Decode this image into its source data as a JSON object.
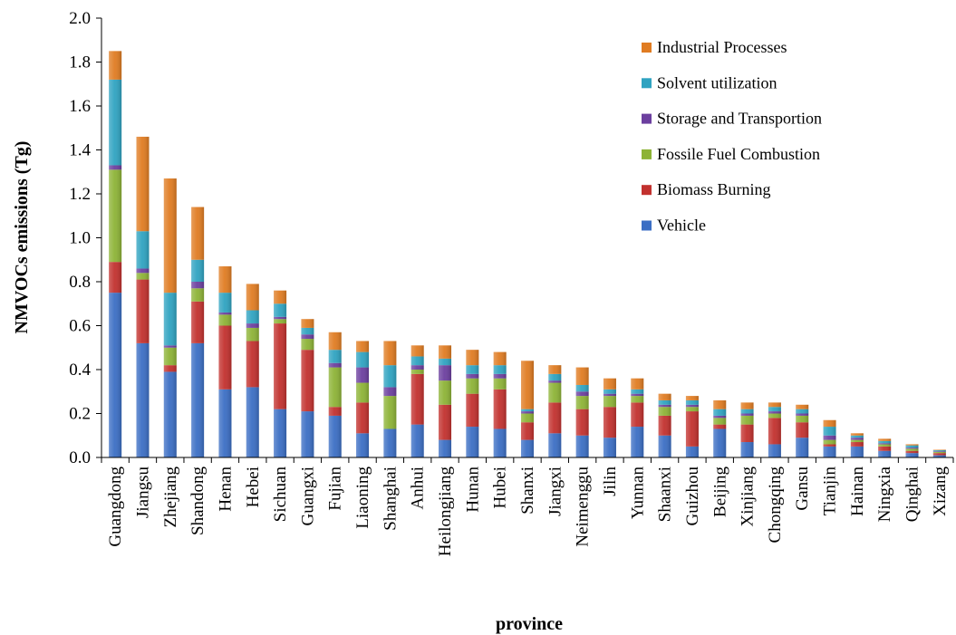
{
  "chart_data": {
    "type": "bar",
    "stacked": true,
    "xlabel": "province",
    "ylabel": "NMVOCs emissions (Tg)",
    "ylim": [
      0,
      2.0
    ],
    "yticks": [
      "0.0",
      "0.2",
      "0.4",
      "0.6",
      "0.8",
      "1.0",
      "1.2",
      "1.4",
      "1.6",
      "1.8",
      "2.0"
    ],
    "grid": false,
    "legend_position": "top-right",
    "categories": [
      "Guangdong",
      "Jiangsu",
      "Zhejiang",
      "Shandong",
      "Henan",
      "Hebei",
      "Sichuan",
      "Guangxi",
      "Fujian",
      "Liaoning",
      "Shanghai",
      "Anhui",
      "Heilongjiang",
      "Hunan",
      "Hubei",
      "Shanxi",
      "Jiangxi",
      "Neimenggu",
      "Jilin",
      "Yunnan",
      "Shaanxi",
      "Guizhou",
      "Beijing",
      "Xinjiang",
      "Chongqing",
      "Gansu",
      "Tianjin",
      "Hainan",
      "Ningxia",
      "Qinghai",
      "Xizang"
    ],
    "series": [
      {
        "name": "Vehicle",
        "color": "#3B6EC4",
        "values": [
          0.75,
          0.52,
          0.39,
          0.52,
          0.31,
          0.32,
          0.22,
          0.21,
          0.19,
          0.11,
          0.13,
          0.15,
          0.08,
          0.14,
          0.13,
          0.08,
          0.11,
          0.1,
          0.09,
          0.14,
          0.1,
          0.05,
          0.13,
          0.07,
          0.06,
          0.09,
          0.05,
          0.05,
          0.03,
          0.02,
          0.01
        ]
      },
      {
        "name": "Biomass Burning",
        "color": "#C2312E",
        "values": [
          0.14,
          0.29,
          0.03,
          0.19,
          0.29,
          0.21,
          0.39,
          0.28,
          0.04,
          0.14,
          0.0,
          0.23,
          0.16,
          0.15,
          0.18,
          0.08,
          0.14,
          0.12,
          0.14,
          0.11,
          0.09,
          0.16,
          0.02,
          0.08,
          0.12,
          0.07,
          0.01,
          0.02,
          0.02,
          0.01,
          0.01
        ]
      },
      {
        "name": "Fossile Fuel Combustion",
        "color": "#8DB336",
        "values": [
          0.42,
          0.03,
          0.08,
          0.06,
          0.05,
          0.06,
          0.02,
          0.05,
          0.18,
          0.09,
          0.15,
          0.02,
          0.11,
          0.07,
          0.05,
          0.04,
          0.09,
          0.06,
          0.05,
          0.03,
          0.04,
          0.02,
          0.03,
          0.04,
          0.02,
          0.03,
          0.02,
          0.01,
          0.01,
          0.01,
          0.005
        ]
      },
      {
        "name": "Storage and Transportion",
        "color": "#6C3F9F",
        "values": [
          0.02,
          0.02,
          0.01,
          0.03,
          0.01,
          0.02,
          0.01,
          0.02,
          0.02,
          0.07,
          0.04,
          0.02,
          0.07,
          0.02,
          0.02,
          0.01,
          0.01,
          0.02,
          0.01,
          0.01,
          0.01,
          0.01,
          0.01,
          0.01,
          0.01,
          0.01,
          0.02,
          0.01,
          0.005,
          0.005,
          0.003
        ]
      },
      {
        "name": "Solvent utilization",
        "color": "#2FA3C1",
        "values": [
          0.39,
          0.17,
          0.24,
          0.1,
          0.09,
          0.06,
          0.06,
          0.03,
          0.06,
          0.07,
          0.1,
          0.04,
          0.03,
          0.04,
          0.04,
          0.01,
          0.03,
          0.03,
          0.02,
          0.02,
          0.02,
          0.02,
          0.03,
          0.02,
          0.02,
          0.02,
          0.04,
          0.01,
          0.01,
          0.01,
          0.005
        ]
      },
      {
        "name": "Industrial Processes",
        "color": "#E07C22",
        "values": [
          0.13,
          0.43,
          0.52,
          0.24,
          0.12,
          0.12,
          0.06,
          0.04,
          0.08,
          0.05,
          0.11,
          0.05,
          0.06,
          0.07,
          0.06,
          0.22,
          0.04,
          0.08,
          0.05,
          0.05,
          0.03,
          0.02,
          0.04,
          0.03,
          0.02,
          0.02,
          0.03,
          0.01,
          0.01,
          0.005,
          0.002
        ]
      }
    ]
  }
}
